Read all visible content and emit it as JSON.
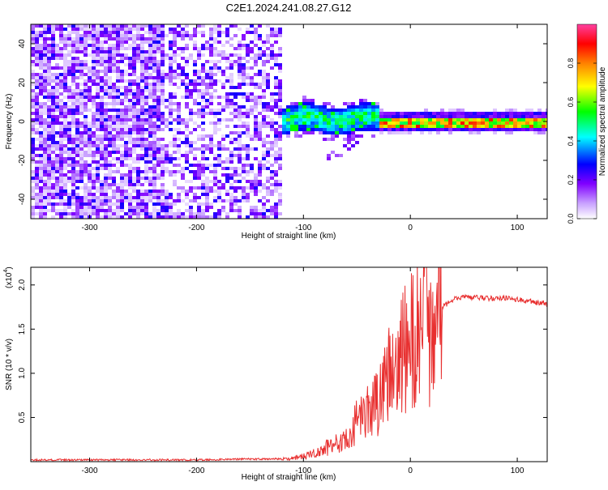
{
  "title": "C2E1.2024.241.08.27.G12",
  "chart_data": [
    {
      "type": "heatmap",
      "xlabel": "Height of straight line (km)",
      "ylabel": "Frequency (Hz)",
      "xlim": [
        -355,
        128
      ],
      "ylim": [
        -50,
        50
      ],
      "xticks": [
        -300,
        -200,
        -100,
        0,
        100
      ],
      "yticks": [
        -40,
        -20,
        0,
        20,
        40
      ],
      "colorbar": {
        "label": "Normalized spectral amplitude",
        "range": [
          0,
          1
        ],
        "ticks": [
          "0.0",
          "0.2",
          "0.4",
          "0.6",
          "0.8"
        ],
        "colors": [
          "#ffffff",
          "#c8a0ff",
          "#8000ff",
          "#0000ff",
          "#00ffff",
          "#00ff00",
          "#ffff00",
          "#ff8000",
          "#ff0000",
          "#ff40a0"
        ]
      },
      "regions": [
        {
          "x": [
            -355,
            -120
          ],
          "frequency_span": [
            -50,
            50
          ],
          "amplitude": "low, scattered"
        },
        {
          "x": [
            -140,
            -30
          ],
          "frequency_center": 2,
          "frequency_halfwidth": 6,
          "amplitude": "0.2-0.5"
        },
        {
          "x": [
            -30,
            128
          ],
          "frequency_center": 0.5,
          "frequency_halfwidth": 2,
          "amplitude": "0.5-0.9"
        }
      ]
    },
    {
      "type": "line",
      "xlabel": "Height of straight line (km)",
      "ylabel": "SNR (10 * v/v)",
      "y_multiplier": "(x10",
      "y_exponent": "4",
      "y_multiplier_close": ")",
      "xlim": [
        -355,
        128
      ],
      "ylim": [
        0,
        2.2
      ],
      "xticks": [
        -300,
        -200,
        -100,
        0,
        100
      ],
      "yticks": [
        "0.5",
        "1.0",
        "1.5",
        "2.0"
      ],
      "series": [
        {
          "color": "#e83030",
          "x": [
            -355,
            -300,
            -250,
            -200,
            -150,
            -120,
            -110,
            -100,
            -90,
            -80,
            -70,
            -60,
            -50,
            -40,
            -30,
            -25,
            -20,
            -15,
            -10,
            -5,
            0,
            5,
            10,
            15,
            20,
            25,
            30,
            40,
            50,
            60,
            70,
            80,
            90,
            100,
            110,
            120,
            128
          ],
          "y": [
            0.02,
            0.02,
            0.02,
            0.02,
            0.03,
            0.03,
            0.04,
            0.06,
            0.1,
            0.15,
            0.2,
            0.3,
            0.45,
            0.55,
            0.7,
            0.8,
            0.95,
            1.05,
            1.15,
            1.25,
            1.35,
            1.4,
            1.45,
            1.5,
            1.55,
            1.65,
            1.75,
            1.84,
            1.86,
            1.86,
            1.85,
            1.85,
            1.85,
            1.84,
            1.82,
            1.8,
            1.79
          ]
        }
      ]
    }
  ]
}
